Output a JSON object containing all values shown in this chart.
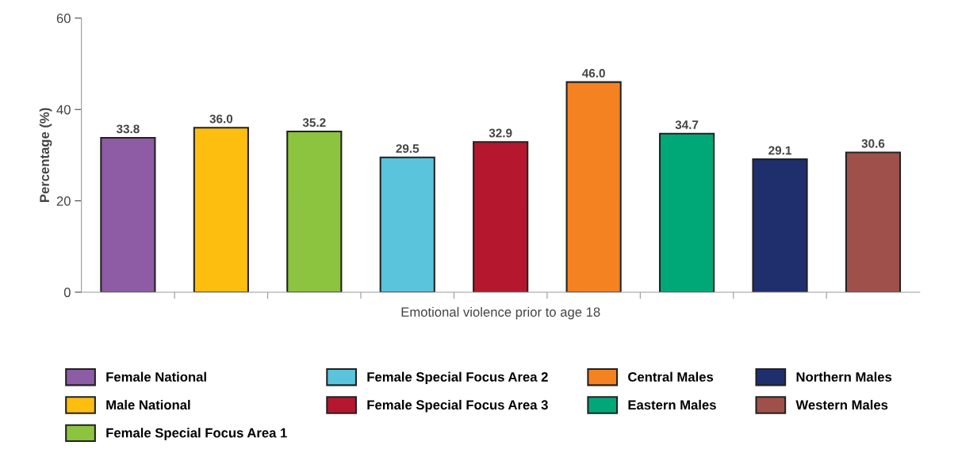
{
  "chart_data": {
    "type": "bar",
    "xlabel": "Emotional violence prior to age 18",
    "ylabel": "Percentage (%)",
    "categories": [
      null,
      null,
      null,
      null,
      null,
      null,
      null,
      null,
      null
    ],
    "series": [
      {
        "name": "Female National",
        "color": "#8e5ba5",
        "values": [
          33.8,
          null,
          null,
          null,
          null,
          null,
          null,
          null,
          null
        ],
        "value_labels": [
          "33.8",
          null,
          null,
          null,
          null,
          null,
          null,
          null,
          null
        ]
      },
      {
        "name": "Male National",
        "color": "#fdbe10",
        "values": [
          null,
          36.0,
          null,
          null,
          null,
          null,
          null,
          null,
          null
        ],
        "value_labels": [
          null,
          "36.0",
          null,
          null,
          null,
          null,
          null,
          null,
          null
        ]
      },
      {
        "name": "Female Special Focus Area 1",
        "color": "#8cc43f",
        "values": [
          null,
          null,
          35.2,
          null,
          null,
          null,
          null,
          null,
          null
        ],
        "value_labels": [
          null,
          null,
          "35.2",
          null,
          null,
          null,
          null,
          null,
          null
        ]
      },
      {
        "name": "Female Special Focus Area 2",
        "color": "#5bc4dd",
        "values": [
          null,
          null,
          null,
          29.5,
          null,
          null,
          null,
          null,
          null
        ],
        "value_labels": [
          null,
          null,
          null,
          "29.5",
          null,
          null,
          null,
          null,
          null
        ]
      },
      {
        "name": "Female Special Focus Area 3",
        "color": "#b5172f",
        "values": [
          null,
          null,
          null,
          null,
          32.9,
          null,
          null,
          null,
          null
        ],
        "value_labels": [
          null,
          null,
          null,
          null,
          "32.9",
          null,
          null,
          null,
          null
        ]
      },
      {
        "name": "Central Males",
        "color": "#f58220",
        "values": [
          null,
          null,
          null,
          null,
          null,
          46.0,
          null,
          null,
          null
        ],
        "value_labels": [
          null,
          null,
          null,
          null,
          null,
          "46.0",
          null,
          null,
          null
        ]
      },
      {
        "name": "Eastern Males",
        "color": "#00a878",
        "values": [
          null,
          null,
          null,
          null,
          null,
          null,
          34.7,
          null,
          null
        ],
        "value_labels": [
          null,
          null,
          null,
          null,
          null,
          null,
          "34.7",
          null,
          null
        ]
      },
      {
        "name": "Northern Males",
        "color": "#1f2f6e",
        "values": [
          null,
          null,
          null,
          null,
          null,
          null,
          null,
          29.1,
          null
        ],
        "value_labels": [
          null,
          null,
          null,
          null,
          null,
          null,
          null,
          "29.1",
          null
        ]
      },
      {
        "name": "Western Males",
        "color": "#a0504a",
        "values": [
          null,
          null,
          null,
          null,
          null,
          null,
          null,
          null,
          30.6
        ],
        "value_labels": [
          null,
          null,
          null,
          null,
          null,
          null,
          null,
          null,
          "30.6"
        ]
      }
    ],
    "ylim": [
      0,
      60
    ],
    "yticks": [
      0,
      20,
      40,
      60
    ],
    "grid": false,
    "legend": "bottom"
  }
}
